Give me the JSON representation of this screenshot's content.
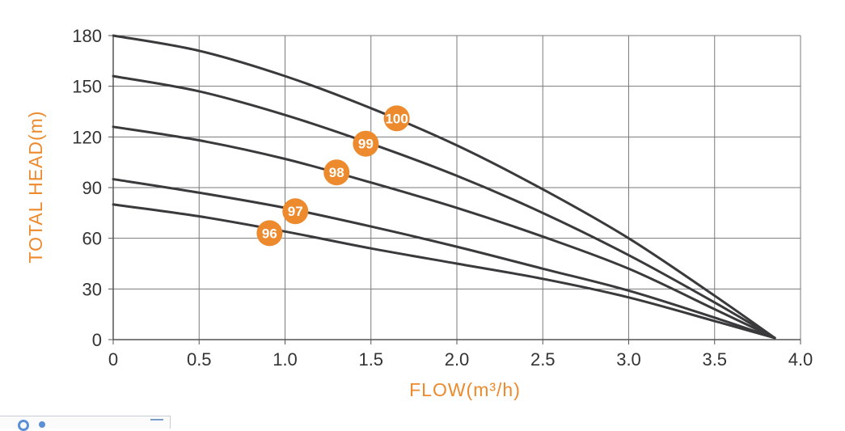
{
  "chart_data": {
    "type": "line",
    "xlabel": "FLOW(m³/h)",
    "ylabel": "TOTAL HEAD(m)",
    "xlim": [
      0,
      4.0
    ],
    "ylim": [
      0,
      180
    ],
    "x_ticks": [
      "0",
      "0.5",
      "1.0",
      "1.5",
      "2.0",
      "2.5",
      "3.0",
      "3.5",
      "4.0"
    ],
    "x_tick_values": [
      0,
      0.5,
      1.0,
      1.5,
      2.0,
      2.5,
      3.0,
      3.5,
      4.0
    ],
    "y_ticks": [
      "0",
      "30",
      "60",
      "90",
      "120",
      "150",
      "180"
    ],
    "y_tick_values": [
      0,
      30,
      60,
      90,
      120,
      150,
      180
    ],
    "grid": true,
    "series": [
      {
        "name": "100",
        "x": [
          0,
          0.5,
          1.0,
          1.5,
          2.0,
          2.5,
          3.0,
          3.5,
          3.85
        ],
        "y": [
          180,
          171,
          156,
          137,
          115,
          89,
          60,
          26,
          1
        ],
        "label_at": [
          1.65,
          131
        ]
      },
      {
        "name": "99",
        "x": [
          0,
          0.5,
          1.0,
          1.5,
          2.0,
          2.5,
          3.0,
          3.5,
          3.85
        ],
        "y": [
          156,
          147,
          133,
          116,
          97,
          75,
          50,
          22,
          1
        ],
        "label_at": [
          1.47,
          116
        ]
      },
      {
        "name": "98",
        "x": [
          0,
          0.5,
          1.0,
          1.5,
          2.0,
          2.5,
          3.0,
          3.5,
          3.85
        ],
        "y": [
          126,
          118,
          107,
          93,
          78,
          61,
          42,
          18,
          1
        ],
        "label_at": [
          1.3,
          99
        ]
      },
      {
        "name": "97",
        "x": [
          0,
          0.5,
          1.0,
          1.5,
          2.0,
          2.5,
          3.0,
          3.5,
          3.85
        ],
        "y": [
          95,
          87,
          78,
          67,
          55,
          42,
          29,
          13,
          1
        ],
        "label_at": [
          1.06,
          76
        ]
      },
      {
        "name": "96",
        "x": [
          0,
          0.5,
          1.0,
          1.5,
          2.0,
          2.5,
          3.0,
          3.5,
          3.85
        ],
        "y": [
          80,
          73,
          64,
          54,
          45,
          36,
          25,
          11,
          1
        ],
        "label_at": [
          0.91,
          63
        ]
      }
    ],
    "colors": {
      "curve": "#3a3a3c",
      "grid": "#7a7a7a",
      "label_fill": "#ec8a2d",
      "axis_title": "#ec8a2d",
      "tick_text": "#333333"
    }
  }
}
